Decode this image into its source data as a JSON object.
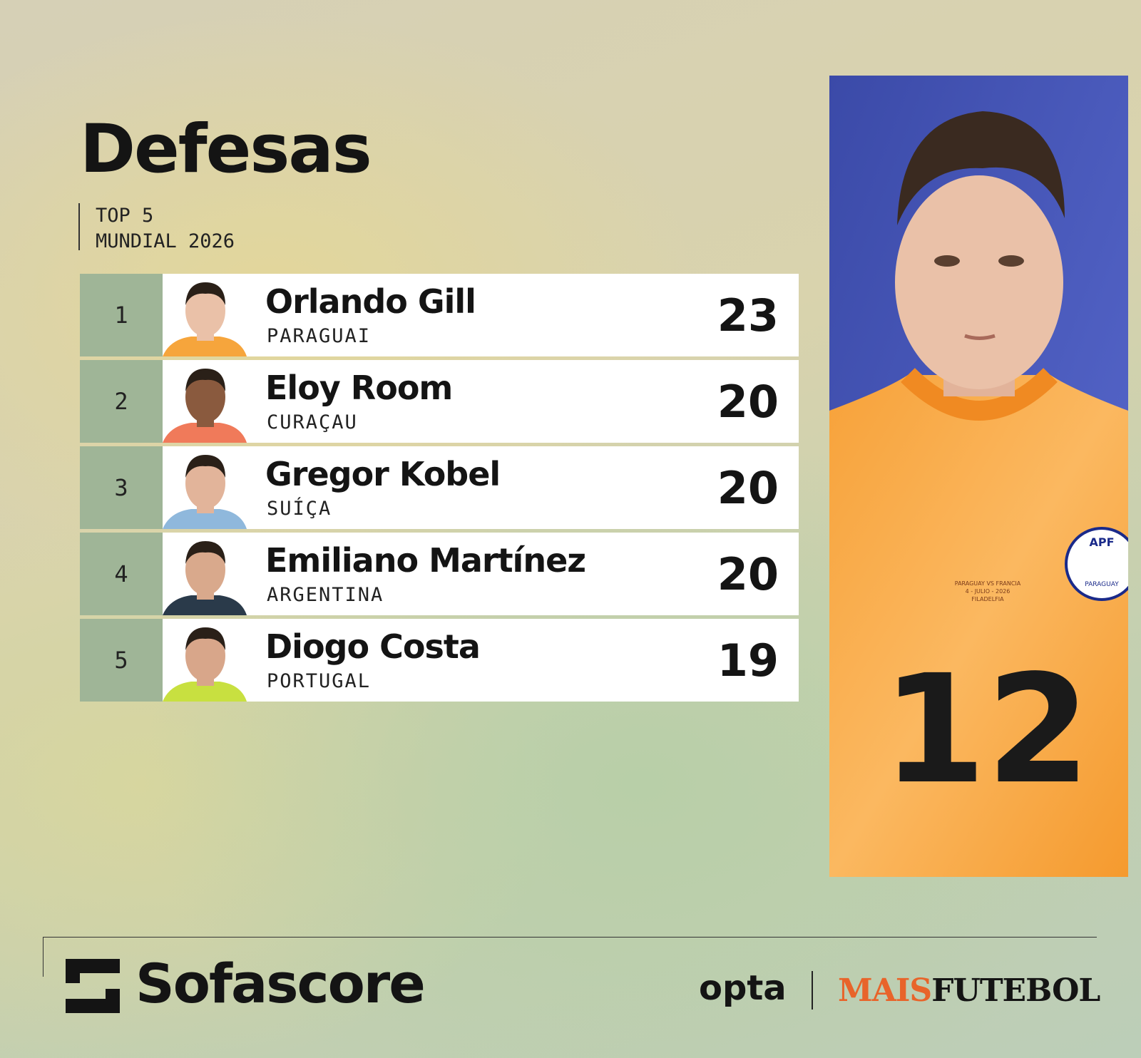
{
  "header": {
    "title": "Defesas",
    "subtitle_lines": [
      "TOP 5",
      "MUNDIAL 2026"
    ]
  },
  "table": {
    "rows": [
      {
        "rank": 1,
        "name": "Orlando Gill",
        "country": "PARAGUAI",
        "value": 23
      },
      {
        "rank": 2,
        "name": "Eloy Room",
        "country": "CURAÇAU",
        "value": 20
      },
      {
        "rank": 3,
        "name": "Gregor Kobel",
        "country": "SUÍÇA",
        "value": 20
      },
      {
        "rank": 4,
        "name": "Emiliano Martínez",
        "country": "ARGENTINA",
        "value": 20
      },
      {
        "rank": 5,
        "name": "Diogo Costa",
        "country": "PORTUGAL",
        "value": 19
      }
    ]
  },
  "photo": {
    "jersey_number": "12",
    "badge": "APF",
    "badge_country": "PARAGUAY",
    "match_note": [
      "PARAGUAY VS FRANCIA",
      "4 - JULIO - 2026",
      "FILADELFIA"
    ]
  },
  "footer": {
    "brand": "Sofascore",
    "partner": "opta",
    "outlet_part1": "MAIS",
    "outlet_part2": "FUTEBOL"
  }
}
